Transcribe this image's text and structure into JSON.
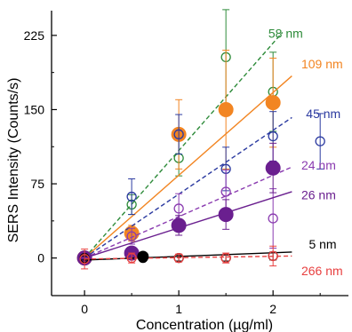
{
  "chart_data": {
    "type": "scatter",
    "title": "",
    "xlabel": "Concentration (µg/ml)",
    "ylabel": "SERS Intensity (Counts/s)",
    "xlim": [
      -0.35,
      2.8
    ],
    "ylim": [
      -38,
      250
    ],
    "xticks": [
      0,
      1,
      2
    ],
    "xtick_labels": [
      "0",
      "1",
      "2"
    ],
    "yticks": [
      0,
      75,
      150,
      225
    ],
    "ytick_labels": [
      "0",
      "75",
      "150",
      "225"
    ],
    "grid": false,
    "legend": "none (series labeled inline)",
    "series": [
      {
        "name": "58 nm",
        "color": "#2e8b3a",
        "marker": "open-circle",
        "fit_style": "dashed",
        "points": [
          [
            0,
            0,
            2
          ],
          [
            0.5,
            54,
            10
          ],
          [
            1,
            101,
            18
          ],
          [
            1.5,
            203,
            48
          ],
          [
            2,
            168,
            40
          ]
        ],
        "fit": [
          [
            0,
            0
          ],
          [
            2.1,
            228
          ]
        ],
        "label": "58 nm",
        "label_at": [
          1.95,
          227
        ]
      },
      {
        "name": "109 nm",
        "color": "#f28522",
        "marker": "filled-circle",
        "fit_style": "solid",
        "points": [
          [
            0,
            0,
            3
          ],
          [
            0.5,
            25,
            8
          ],
          [
            1,
            125,
            35
          ],
          [
            1.5,
            150,
            60
          ],
          [
            2,
            157,
            45
          ]
        ],
        "fit": [
          [
            0,
            0
          ],
          [
            2.2,
            184
          ]
        ],
        "label": "109 nm",
        "label_at": [
          2.3,
          196
        ]
      },
      {
        "name": "45 nm",
        "color": "#2b3aa0",
        "marker": "open-circle",
        "fit_style": "dashed",
        "points": [
          [
            0,
            0,
            2
          ],
          [
            0.5,
            62,
            18
          ],
          [
            1,
            125,
            20
          ],
          [
            1.5,
            90,
            22
          ],
          [
            2,
            123,
            25
          ],
          [
            2.5,
            118,
            28
          ]
        ],
        "fit": [
          [
            0,
            0
          ],
          [
            2.2,
            142
          ]
        ],
        "label": "45 nm",
        "label_at": [
          2.35,
          146
        ]
      },
      {
        "name": "24 nm",
        "color": "#8a3bb0",
        "marker": "open-circle",
        "fit_style": "dashed",
        "points": [
          [
            0,
            0,
            2
          ],
          [
            0.5,
            22,
            8
          ],
          [
            1,
            50,
            15
          ],
          [
            1.5,
            67,
            22
          ],
          [
            2,
            40,
            30
          ]
        ],
        "fit": [
          [
            0,
            0
          ],
          [
            2.2,
            92
          ]
        ],
        "label": "24 nm",
        "label_at": [
          2.3,
          94
        ]
      },
      {
        "name": "26 nm",
        "color": "#6a1f8f",
        "marker": "filled-circle",
        "fit_style": "solid",
        "points": [
          [
            0,
            0,
            2
          ],
          [
            0.5,
            5,
            5
          ],
          [
            1,
            33,
            10
          ],
          [
            1.5,
            44,
            15
          ],
          [
            2,
            91,
            25
          ]
        ],
        "fit": [
          [
            0,
            0
          ],
          [
            2.2,
            67
          ]
        ],
        "label": "26 nm",
        "label_at": [
          2.3,
          64
        ]
      },
      {
        "name": "5 nm",
        "color": "#000000",
        "marker": "open-circle",
        "fit_style": "solid",
        "points": [
          [
            0,
            0,
            2
          ],
          [
            0.62,
            0,
            2
          ],
          [
            1,
            0,
            3
          ],
          [
            1.5,
            0,
            3
          ],
          [
            2,
            2,
            4
          ]
        ],
        "fit": [
          [
            0,
            -2
          ],
          [
            2.2,
            6
          ]
        ],
        "label": "5 nm",
        "label_at": [
          2.38,
          14
        ]
      },
      {
        "name": "266 nm",
        "color": "#e84040",
        "marker": "open-circle",
        "fit_style": "dashed",
        "points": [
          [
            0,
            -1,
            10
          ],
          [
            0.5,
            0,
            5
          ],
          [
            1,
            0,
            4
          ],
          [
            1.5,
            0,
            5
          ],
          [
            2,
            2,
            10
          ]
        ],
        "fit": [
          [
            0,
            -1
          ],
          [
            2.2,
            2
          ]
        ],
        "label": "266 nm",
        "label_at": [
          2.3,
          -13
        ]
      }
    ],
    "filled_marker_series": [
      "109 nm",
      "26 nm"
    ],
    "filled_points": {
      "5 nm": [
        0.62,
        1.5,
        2
      ]
    }
  }
}
